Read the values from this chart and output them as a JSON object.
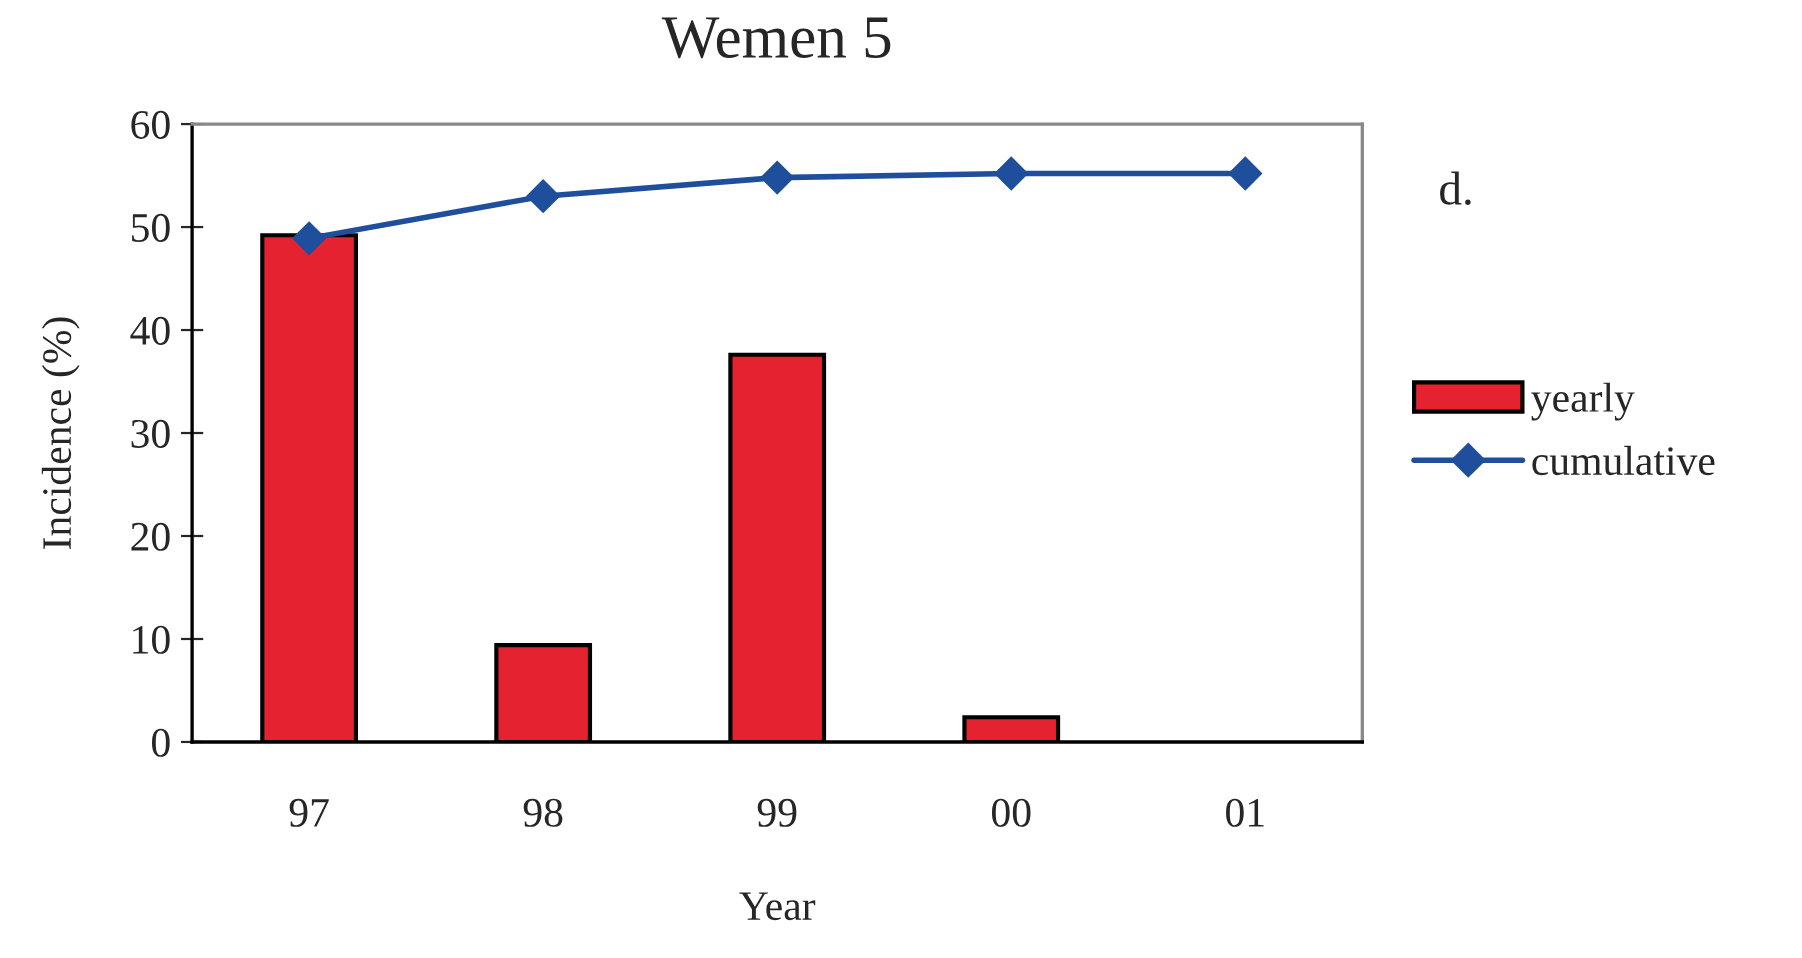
{
  "chart_data": {
    "type": "bar",
    "title": "Wemen 5",
    "xlabel": "Year",
    "ylabel": "Incidence (%)",
    "annotations": [
      "d."
    ],
    "categories": [
      "97",
      "98",
      "99",
      "00",
      "01"
    ],
    "series": [
      {
        "name": "yearly",
        "color": "#e52330",
        "values": [
          49.2,
          9.4,
          37.6,
          2.4,
          null
        ]
      },
      {
        "name": "cumulative",
        "type": "line",
        "color": "#1f4f9c",
        "marker": "diamond",
        "line_style": "solid",
        "values": [
          48.9,
          53.0,
          54.8,
          55.2,
          55.2
        ]
      }
    ],
    "ylim": [
      0,
      60
    ],
    "yticks": [
      0,
      10,
      20,
      30,
      40,
      50,
      60
    ],
    "legend": "right"
  }
}
